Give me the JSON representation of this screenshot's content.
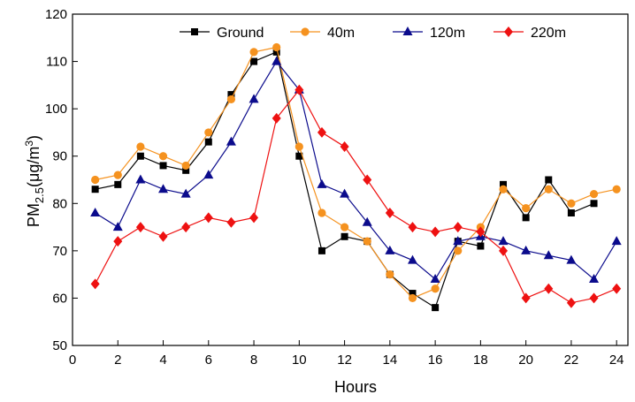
{
  "chart_data": {
    "type": "line",
    "title": "",
    "xlabel": "Hours",
    "ylabel": {
      "base": "PM",
      "sub": "2.5",
      "mid": "(μg/m",
      "sup": "3",
      "end": ")"
    },
    "xlim": [
      0,
      24.5
    ],
    "ylim": [
      50,
      120
    ],
    "xticks": [
      0,
      2,
      4,
      6,
      8,
      10,
      12,
      14,
      16,
      18,
      20,
      22,
      24
    ],
    "yticks": [
      50,
      60,
      70,
      80,
      90,
      100,
      110,
      120
    ],
    "grid": false,
    "legend_position": "top",
    "x": [
      1,
      2,
      3,
      4,
      5,
      6,
      7,
      8,
      9,
      10,
      11,
      12,
      13,
      14,
      15,
      16,
      17,
      18,
      19,
      20,
      21,
      22,
      23,
      24
    ],
    "series": [
      {
        "name": "Ground",
        "marker": "square",
        "color": "#000000",
        "values": [
          83,
          84,
          90,
          88,
          87,
          93,
          103,
          110,
          112,
          90,
          70,
          73,
          72,
          65,
          61,
          58,
          72,
          71,
          84,
          77,
          85,
          78,
          80,
          null
        ]
      },
      {
        "name": "40m",
        "marker": "circle",
        "color": "#f5921f",
        "values": [
          85,
          86,
          92,
          90,
          88,
          95,
          102,
          112,
          113,
          92,
          78,
          75,
          72,
          65,
          60,
          62,
          70,
          75,
          83,
          79,
          83,
          80,
          82,
          83
        ]
      },
      {
        "name": "120m",
        "marker": "triangle",
        "color": "#0b0b8c",
        "values": [
          78,
          75,
          85,
          83,
          82,
          86,
          93,
          102,
          110,
          104,
          84,
          82,
          76,
          70,
          68,
          64,
          72,
          73,
          72,
          70,
          69,
          68,
          64,
          72
        ]
      },
      {
        "name": "220m",
        "marker": "diamond",
        "color": "#ee1111",
        "values": [
          63,
          72,
          75,
          73,
          75,
          77,
          76,
          77,
          98,
          104,
          95,
          92,
          85,
          78,
          75,
          74,
          75,
          74,
          70,
          60,
          62,
          59,
          60,
          62
        ]
      }
    ]
  }
}
